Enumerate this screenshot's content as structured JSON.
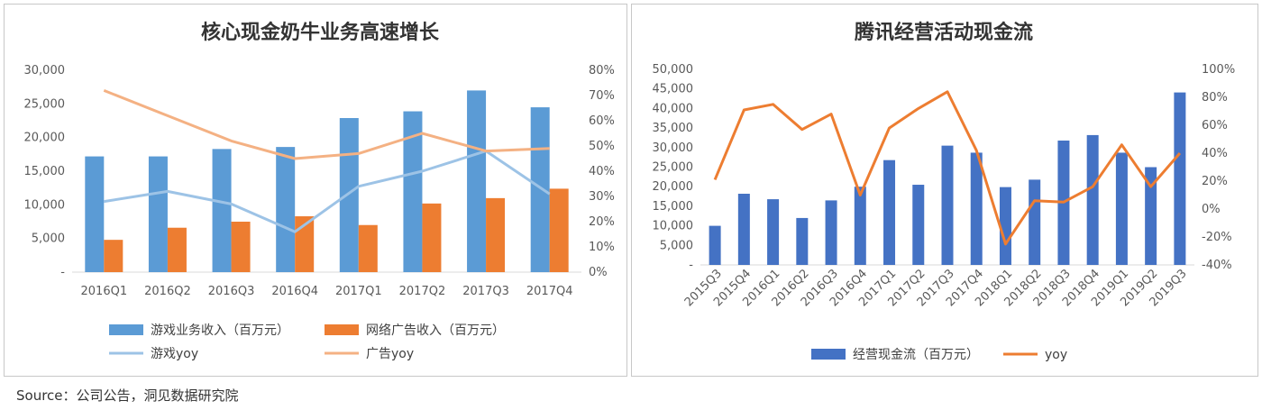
{
  "chart_data": [
    {
      "type": "bar",
      "title": "核心现金奶牛业务高速增长",
      "categories": [
        "2016Q1",
        "2016Q2",
        "2016Q3",
        "2016Q4",
        "2017Q1",
        "2017Q2",
        "2017Q3",
        "2017Q4"
      ],
      "ylim": [
        0,
        30000
      ],
      "y_ticks": [
        "-",
        "5,000",
        "10,000",
        "15,000",
        "20,000",
        "25,000",
        "30,000"
      ],
      "y2lim": [
        0,
        0.8
      ],
      "y2_ticks": [
        "0%",
        "10%",
        "20%",
        "30%",
        "40%",
        "50%",
        "60%",
        "70%",
        "80%"
      ],
      "legend_position": "bottom",
      "series": [
        {
          "name": "游戏业务收入（百万元）",
          "kind": "bar",
          "axis": "left",
          "color": "#5b9bd5",
          "values": [
            17200,
            17200,
            18300,
            18600,
            22900,
            23900,
            27000,
            24500
          ]
        },
        {
          "name": "网络广告收入（百万元）",
          "kind": "bar",
          "axis": "left",
          "color": "#ed7d31",
          "values": [
            4800,
            6600,
            7500,
            8300,
            7000,
            10200,
            11000,
            12400
          ]
        },
        {
          "name": "游戏yoy",
          "kind": "line",
          "axis": "right",
          "color": "#9dc3e6",
          "values": [
            0.28,
            0.32,
            0.27,
            0.16,
            0.34,
            0.4,
            0.48,
            0.31
          ]
        },
        {
          "name": "广告yoy",
          "kind": "line",
          "axis": "right",
          "color": "#f4b183",
          "values": [
            0.72,
            0.62,
            0.52,
            0.45,
            0.47,
            0.55,
            0.48,
            0.49
          ]
        }
      ]
    },
    {
      "type": "bar",
      "title": "腾讯经营活动现金流",
      "categories": [
        "2015Q3",
        "2015Q4",
        "2016Q1",
        "2016Q2",
        "2016Q3",
        "2016Q4",
        "2017Q1",
        "2017Q2",
        "2017Q3",
        "2017Q4",
        "2018Q1",
        "2018Q2",
        "2018Q3",
        "2018Q4",
        "2019Q1",
        "2019Q2",
        "2019Q3"
      ],
      "ylim": [
        0,
        50000
      ],
      "y_ticks": [
        "-",
        "5,000",
        "10,000",
        "15,000",
        "20,000",
        "25,000",
        "30,000",
        "35,000",
        "40,000",
        "45,000",
        "50,000"
      ],
      "y2lim": [
        -0.4,
        1.0
      ],
      "y2_ticks": [
        "-40%",
        "-20%",
        "0%",
        "20%",
        "40%",
        "60%",
        "80%",
        "100%"
      ],
      "legend_position": "bottom",
      "series": [
        {
          "name": "经营现金流（百万元）",
          "kind": "bar",
          "axis": "left",
          "color": "#4472c4",
          "values": [
            10000,
            18200,
            16800,
            12000,
            16500,
            20000,
            26800,
            20500,
            30500,
            28700,
            19900,
            21800,
            31800,
            33200,
            28700,
            25000,
            44100
          ]
        },
        {
          "name": "yoy",
          "kind": "line",
          "axis": "right",
          "color": "#ed7d31",
          "values": [
            0.21,
            0.71,
            0.75,
            0.57,
            0.68,
            0.1,
            0.58,
            0.72,
            0.84,
            0.42,
            -0.25,
            0.06,
            0.05,
            0.16,
            0.46,
            0.16,
            0.4
          ]
        }
      ]
    }
  ],
  "source_note": "Source：公司公告，洞见数据研究院"
}
